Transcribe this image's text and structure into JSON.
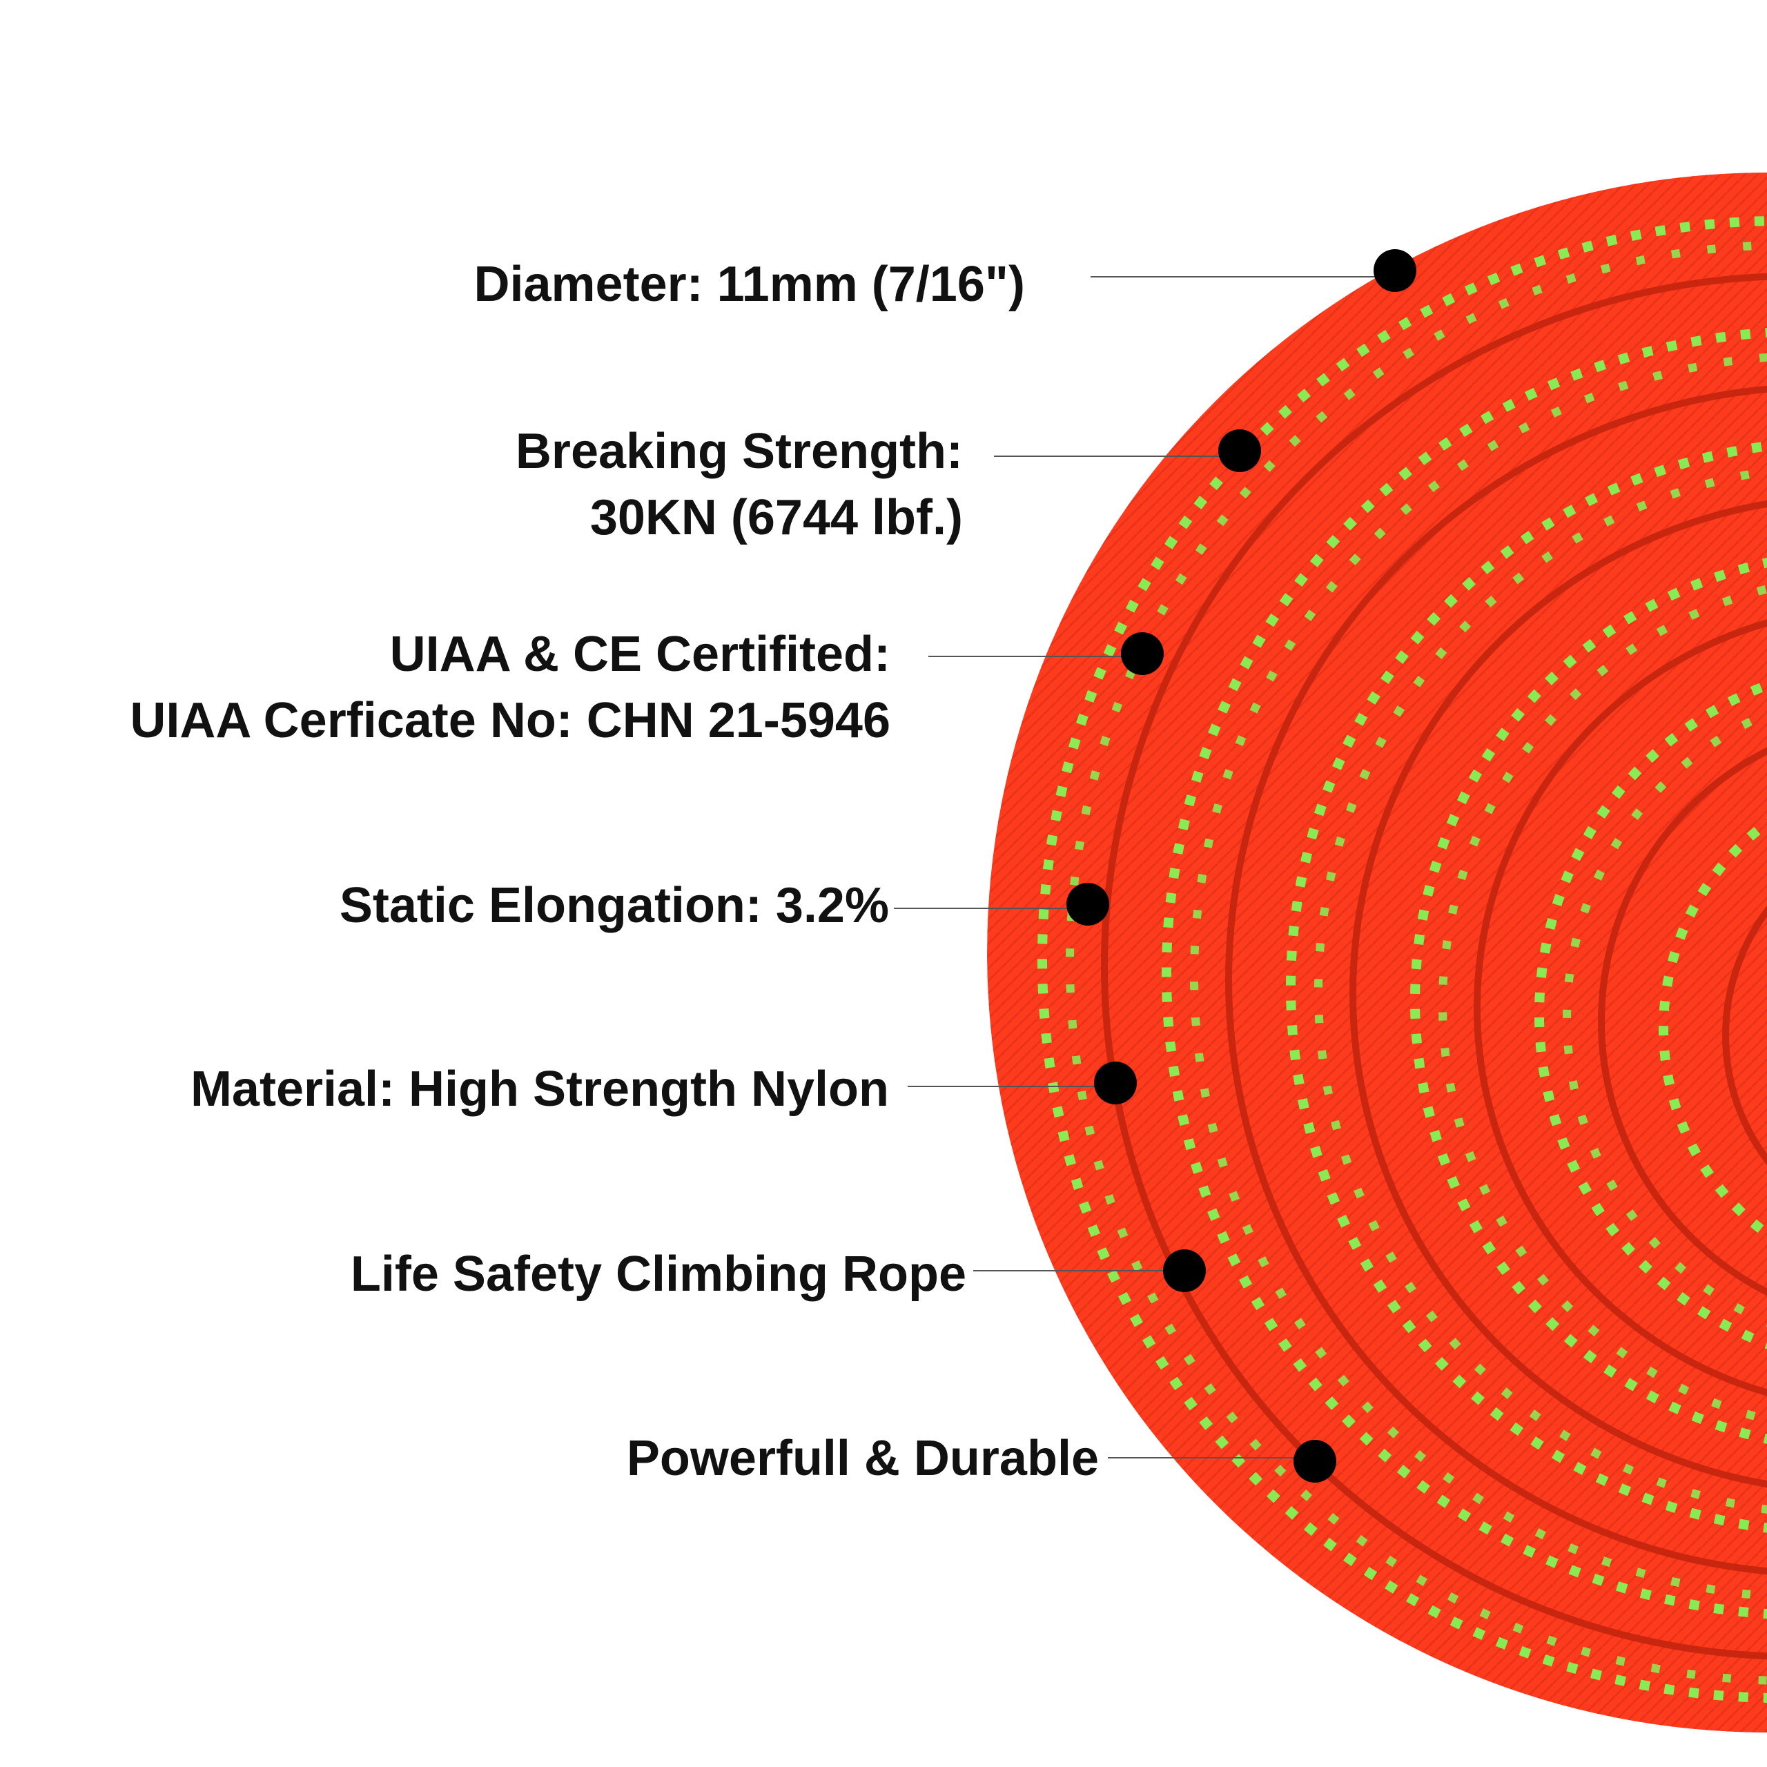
{
  "colors": {
    "rope": "#ff3b1e",
    "rope_dark": "#d42a12",
    "fleck": "#7dff5a",
    "text": "#111111",
    "dot": "#000000"
  },
  "callouts": [
    {
      "lines": [
        "Diameter: 11mm (7/16\")"
      ]
    },
    {
      "lines": [
        "Breaking Strength:",
        "30KN (6744 lbf.)"
      ]
    },
    {
      "lines": [
        "UIAA & CE Certifited:",
        "UIAA Cerficate No: CHN 21-5946"
      ]
    },
    {
      "lines": [
        "Static Elongation: 3.2%"
      ]
    },
    {
      "lines": [
        "Material: High Strength Nylon"
      ]
    },
    {
      "lines": [
        "Life Safety Climbing Rope"
      ]
    },
    {
      "lines": [
        "Powerfull & Durable"
      ]
    }
  ]
}
